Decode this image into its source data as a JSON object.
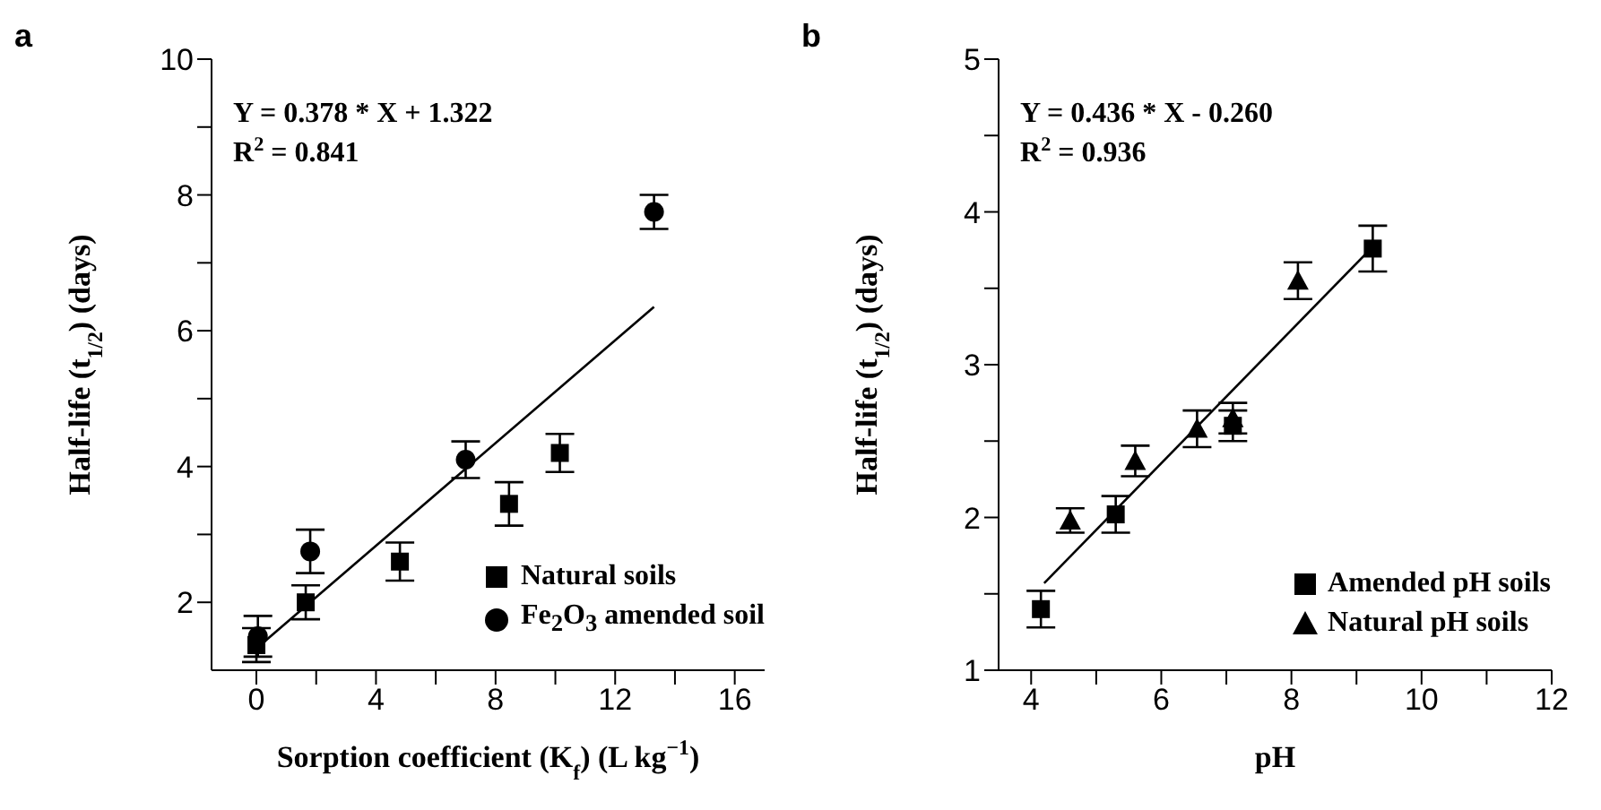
{
  "chart_data": [
    {
      "type": "scatter",
      "title": "a",
      "xlabel": "Sorption coefficient (K$_{f}$) (L kg$^{−1}$)",
      "ylabel": "Half-life (t$_{1/2}$) (days)",
      "annotations": [
        "Y = 0.378 * X + 1.322",
        "R$^{2}$ = 0.841"
      ],
      "xlim": [
        -1.5,
        17
      ],
      "xticks": [
        0,
        {
          "value": 2,
          "label": null
        },
        4,
        {
          "value": 6,
          "label": null
        },
        8,
        {
          "value": 10,
          "label": null
        },
        12,
        {
          "value": 14,
          "label": null
        },
        16
      ],
      "ylim": [
        1,
        10
      ],
      "yticks": [
        2,
        {
          "value": 3,
          "label": null
        },
        4,
        {
          "value": 5,
          "label": null
        },
        6,
        {
          "value": 7,
          "label": null
        },
        8,
        {
          "value": 9,
          "label": null
        },
        10
      ],
      "legend": "bottom right",
      "series": [
        {
          "name": "Natural soils",
          "color": "#000000",
          "marker": "square",
          "x": [
            0,
            1.65,
            4.8,
            8.45,
            10.15
          ],
          "values": [
            1.37,
            2.0,
            2.6,
            3.45,
            4.2
          ],
          "errors": [
            0.25,
            0.25,
            0.28,
            0.32,
            0.28
          ]
        },
        {
          "name": "Fe$_{2}$O$_{3}$ amended soil",
          "color": "#000000",
          "marker": "circle",
          "x": [
            0.05,
            1.8,
            7.0,
            13.3
          ],
          "values": [
            1.5,
            2.75,
            4.1,
            7.75
          ],
          "errors": [
            0.3,
            0.32,
            0.27,
            0.25
          ]
        },
        {
          "type": "line",
          "color": "#000000",
          "marker": "none",
          "x": [
            0,
            13.3
          ],
          "values": [
            1.32,
            6.35
          ]
        }
      ]
    },
    {
      "type": "scatter",
      "title": "b",
      "xlabel": "pH",
      "ylabel": "Half-life (t$_{1/2}$) (days)",
      "annotations": [
        "Y = 0.436 *  X - 0.260",
        "R$^{2}$ = 0.936"
      ],
      "xlim": [
        3.5,
        12
      ],
      "xticks": [
        4,
        {
          "value": 5,
          "label": null
        },
        6,
        {
          "value": 7,
          "label": null
        },
        8,
        {
          "value": 9,
          "label": null
        },
        10,
        {
          "value": 11,
          "label": null
        },
        12
      ],
      "ylim": [
        1,
        5
      ],
      "yticks": [
        1,
        {
          "value": 1.5,
          "label": null
        },
        2,
        {
          "value": 2.5,
          "label": null
        },
        3,
        {
          "value": 3.5,
          "label": null
        },
        4,
        {
          "value": 4.5,
          "label": null
        },
        5
      ],
      "legend": "bottom right",
      "series": [
        {
          "name": "Amended pH soils",
          "color": "#000000",
          "marker": "square",
          "x": [
            4.15,
            5.3,
            7.1,
            9.25
          ],
          "values": [
            1.4,
            2.02,
            2.6,
            3.76
          ],
          "errors": [
            0.12,
            0.12,
            0.1,
            0.15
          ]
        },
        {
          "name": "Natural pH soils",
          "color": "#000000",
          "marker": "triangle",
          "x": [
            4.6,
            5.6,
            6.55,
            7.1,
            8.1
          ],
          "values": [
            1.98,
            2.37,
            2.58,
            2.65,
            3.55
          ],
          "errors": [
            0.08,
            0.1,
            0.12,
            0.1,
            0.12
          ]
        },
        {
          "type": "line",
          "color": "#000000",
          "marker": "none",
          "x": [
            4.2,
            9.2
          ],
          "values": [
            1.57,
            3.75
          ]
        }
      ]
    }
  ]
}
